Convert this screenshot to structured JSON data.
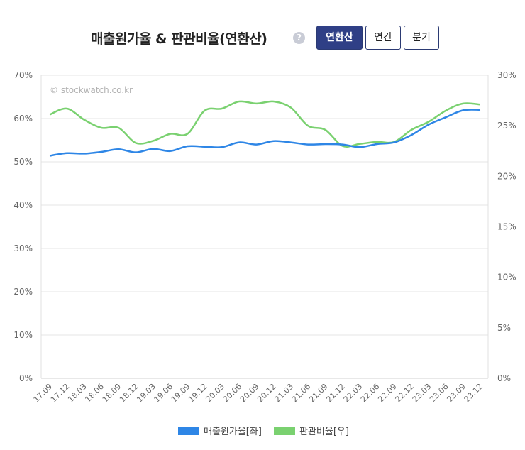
{
  "header": {
    "title": "매출원가율 & 판관비율(연환산)",
    "help_icon": "?",
    "tabs": [
      {
        "label": "연환산",
        "active": true
      },
      {
        "label": "연간",
        "active": false
      },
      {
        "label": "분기",
        "active": false
      }
    ]
  },
  "colors": {
    "series_left": "#2e86e6",
    "series_right": "#7ad170",
    "tab_active_bg": "#2f3f86"
  },
  "chart_data": {
    "type": "line",
    "title": "",
    "watermark": "© stockwatch.co.kr",
    "categories": [
      "17.09",
      "17.12",
      "18.03",
      "18.06",
      "18.09",
      "18.12",
      "19.03",
      "19.06",
      "19.09",
      "19.12",
      "20.03",
      "20.06",
      "20.09",
      "20.12",
      "21.03",
      "21.06",
      "21.09",
      "21.12",
      "22.03",
      "22.06",
      "22.09",
      "22.12",
      "23.03",
      "23.06",
      "23.09",
      "23.12"
    ],
    "y_left": {
      "ticks": [
        "0%",
        "10%",
        "20%",
        "30%",
        "40%",
        "50%",
        "60%",
        "70%"
      ],
      "range": [
        0,
        70
      ]
    },
    "y_right": {
      "ticks": [
        "0%",
        "5%",
        "10%",
        "15%",
        "20%",
        "25%",
        "30%"
      ],
      "range": [
        0,
        30
      ]
    },
    "grid": true,
    "legend_position": "bottom",
    "series": [
      {
        "name": "매출원가율[좌]",
        "axis": "left",
        "values": [
          51.4,
          52.0,
          51.9,
          52.3,
          52.9,
          52.2,
          53.0,
          52.5,
          53.6,
          53.5,
          53.4,
          54.5,
          54.0,
          54.8,
          54.5,
          54.0,
          54.1,
          54.0,
          53.4,
          54.1,
          54.5,
          56.2,
          58.6,
          60.3,
          61.9,
          62.0
        ]
      },
      {
        "name": "판관비율[우]",
        "axis": "right",
        "values": [
          26.1,
          26.7,
          25.6,
          24.8,
          24.8,
          23.3,
          23.5,
          24.2,
          24.2,
          26.5,
          26.7,
          27.4,
          27.2,
          27.4,
          26.8,
          25.0,
          24.6,
          23.0,
          23.2,
          23.4,
          23.4,
          24.6,
          25.4,
          26.5,
          27.2,
          27.1
        ]
      }
    ]
  }
}
